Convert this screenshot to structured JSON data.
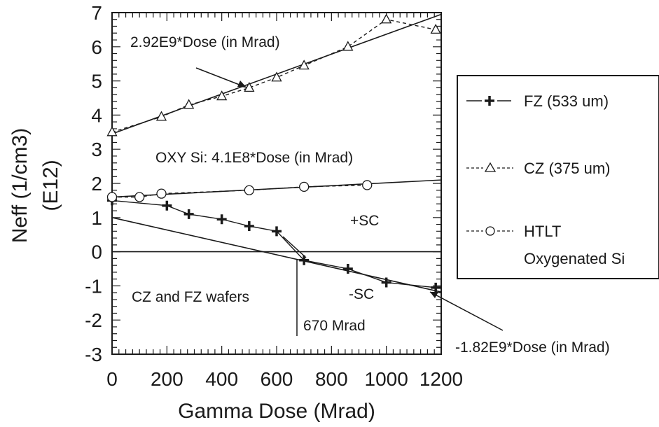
{
  "chart_data": {
    "type": "line",
    "xlabel": "Gamma Dose (Mrad)",
    "ylabel": "Neff (1/cm3)",
    "ylabel_unit": "(E12)",
    "xlim": [
      0,
      1200
    ],
    "ylim": [
      -3,
      7
    ],
    "x_ticks": [
      0,
      200,
      400,
      600,
      800,
      1000,
      1200
    ],
    "x_tick_labels": [
      "0",
      "200",
      "400",
      "600",
      "800",
      "1000",
      "1200"
    ],
    "y_ticks": [
      -3,
      -2,
      -1,
      0,
      1,
      2,
      3,
      4,
      5,
      6,
      7
    ],
    "y_tick_labels": [
      "-3",
      "-2",
      "-1",
      "0",
      "1",
      "2",
      "3",
      "4",
      "5",
      "6",
      "7"
    ],
    "legend_position": "right",
    "legend_entries": [
      "FZ (533 um)",
      "CZ (375 um)",
      "HTLT",
      "Oxygenated Si"
    ],
    "series": [
      {
        "name": "FZ (533 um)",
        "marker": "plus",
        "dash": "solid",
        "x": [
          0,
          200,
          280,
          400,
          500,
          600,
          700,
          860,
          1000,
          1180
        ],
        "y": [
          1.5,
          1.35,
          1.1,
          0.95,
          0.75,
          0.6,
          -0.25,
          -0.5,
          -0.9,
          -1.05
        ]
      },
      {
        "name": "CZ (375 um)",
        "marker": "triangle",
        "dash": "dashed",
        "x": [
          0,
          180,
          280,
          400,
          500,
          600,
          700,
          860,
          1000,
          1180
        ],
        "y": [
          3.5,
          3.95,
          4.3,
          4.55,
          4.8,
          5.1,
          5.45,
          6.0,
          6.8,
          6.5
        ]
      },
      {
        "name": "HTLT Oxygenated Si",
        "marker": "circle",
        "dash": "dashed",
        "x": [
          0,
          100,
          180,
          500,
          700,
          930
        ],
        "y": [
          1.6,
          1.6,
          1.7,
          1.8,
          1.9,
          1.95
        ]
      }
    ],
    "fit_lines": [
      {
        "x": [
          0,
          1200
        ],
        "y": [
          3.45,
          6.95
        ]
      },
      {
        "x": [
          0,
          1200
        ],
        "y": [
          1.6,
          2.1
        ]
      },
      {
        "x": [
          0,
          1200
        ],
        "y": [
          1.0,
          -1.18
        ]
      },
      {
        "x": [
          0,
          1200
        ],
        "y": [
          0,
          0
        ]
      }
    ],
    "annotations": [
      "2.92E9*Dose (in Mrad)",
      "OXY Si:  4.1E8*Dose (in Mrad)",
      "+SC",
      "-SC",
      "CZ and FZ wafers",
      "670 Mrad",
      "-1.82E9*Dose (in Mrad)"
    ]
  }
}
